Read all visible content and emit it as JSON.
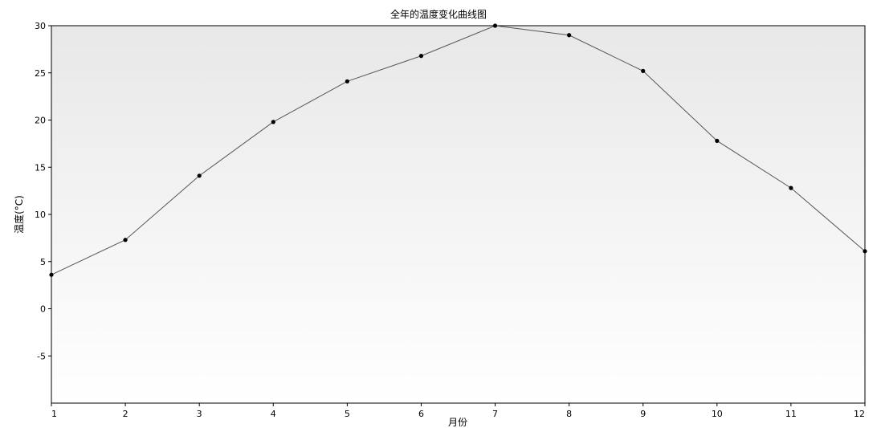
{
  "chart_data": {
    "type": "line",
    "title": "全年的温度变化曲线图",
    "xlabel": "月份",
    "ylabel": "温度(°C)",
    "x": [
      1,
      2,
      3,
      4,
      5,
      6,
      7,
      8,
      9,
      10,
      11,
      12
    ],
    "x_ticks": [
      "1",
      "2",
      "3",
      "4",
      "5",
      "6",
      "7",
      "8",
      "9",
      "10",
      "11",
      "12"
    ],
    "series": [
      {
        "values": [
          3.6,
          7.3,
          14.1,
          19.8,
          24.1,
          26.8,
          30.0,
          29.0,
          25.2,
          17.8,
          12.8,
          6.1
        ]
      }
    ],
    "y_ticks": [
      "30",
      "25",
      "20",
      "15",
      "10",
      "5",
      "0",
      "-5"
    ],
    "xlim": [
      1,
      12
    ],
    "ylim": [
      -10,
      30
    ],
    "grid": false,
    "legend": "none",
    "colors": {
      "line": "#555555",
      "marker": "#000000",
      "plot_bg_top": "#e8e8e8",
      "plot_bg_bottom": "#ffffff",
      "axis": "#000000"
    }
  }
}
